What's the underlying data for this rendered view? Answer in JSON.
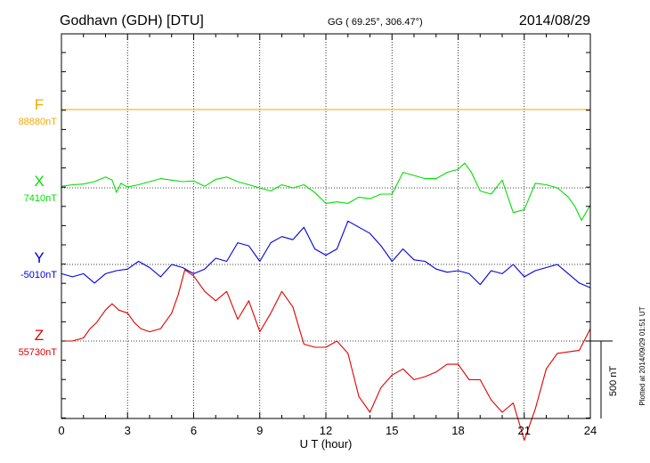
{
  "header": {
    "station": "Godhavn (GDH)  [DTU]",
    "coords": "GG ( 69.25°, 306.47°)",
    "date": "2014/08/29"
  },
  "footer": {
    "plotted": "Plotted at 2014/09/29 01:51  UT"
  },
  "scale": {
    "label": "500 nT",
    "value_nT": 500
  },
  "colors": {
    "F": "#f5a800",
    "X": "#00e000",
    "Y": "#0000e0",
    "Z": "#e00000"
  },
  "chart_data": {
    "type": "line",
    "xlabel": "U T (hour)",
    "xlim": [
      0,
      24
    ],
    "x_ticks": [
      "0",
      "3",
      "6",
      "9",
      "12",
      "15",
      "18",
      "21",
      "24"
    ],
    "series": [
      {
        "name": "F",
        "baseline_label": "88880nT",
        "baseline_nT": 88880,
        "x": [
          0,
          24
        ],
        "values": [
          0,
          0
        ]
      },
      {
        "name": "X",
        "baseline_label": "7410nT",
        "baseline_nT": 7410,
        "x": [
          0,
          0.5,
          1,
          1.5,
          2,
          2.3,
          2.5,
          2.7,
          3,
          3.5,
          4,
          4.5,
          5,
          5.5,
          6,
          6.5,
          7,
          7.5,
          8,
          8.5,
          9,
          9.5,
          10,
          10.5,
          11,
          11.5,
          12,
          12.5,
          13,
          13.5,
          14,
          14.5,
          15,
          15.5,
          16,
          16.5,
          17,
          17.5,
          18,
          18.3,
          18.6,
          19,
          19.5,
          20,
          20.5,
          21,
          21.5,
          22,
          22.5,
          23,
          23.3,
          23.6,
          24
        ],
        "values": [
          10,
          20,
          25,
          40,
          70,
          50,
          -30,
          30,
          5,
          20,
          40,
          60,
          50,
          40,
          45,
          10,
          55,
          70,
          40,
          20,
          0,
          -20,
          20,
          0,
          20,
          -30,
          -100,
          -90,
          -100,
          -60,
          -70,
          -40,
          -40,
          100,
          80,
          60,
          60,
          100,
          120,
          160,
          100,
          -20,
          -40,
          50,
          -160,
          -140,
          30,
          20,
          0,
          -60,
          -120,
          -210,
          -110
        ]
      },
      {
        "name": "Y",
        "baseline_label": "-5010nT",
        "baseline_nT": -5010,
        "x": [
          0,
          0.5,
          1,
          1.5,
          2,
          2.5,
          3,
          3.5,
          4,
          4.5,
          5,
          5.5,
          6,
          6.5,
          7,
          7.5,
          8,
          8.5,
          9,
          9.5,
          10,
          10.5,
          11,
          11.5,
          12,
          12.5,
          13,
          13.5,
          14,
          14.5,
          15,
          15.5,
          16,
          16.5,
          17,
          17.5,
          18,
          18.5,
          19,
          19.5,
          20,
          20.5,
          21,
          21.5,
          22,
          22.5,
          23,
          23.5,
          24
        ],
        "values": [
          -60,
          -80,
          -60,
          -120,
          -60,
          -40,
          -30,
          20,
          -20,
          -80,
          0,
          -20,
          -60,
          -30,
          40,
          20,
          140,
          120,
          20,
          140,
          180,
          160,
          240,
          100,
          60,
          100,
          280,
          240,
          200,
          120,
          20,
          100,
          30,
          20,
          -30,
          -50,
          -40,
          -60,
          -130,
          -40,
          -60,
          0,
          -80,
          -40,
          -20,
          0,
          -60,
          -120,
          -150
        ]
      },
      {
        "name": "Z",
        "baseline_label": "55730nT",
        "baseline_nT": 55730,
        "x": [
          0,
          0.5,
          1,
          1.3,
          1.6,
          2,
          2.3,
          2.6,
          3,
          3.3,
          3.6,
          4,
          4.5,
          5,
          5.3,
          5.6,
          6,
          6.5,
          7,
          7.5,
          8,
          8.5,
          9,
          9.5,
          10,
          10.5,
          11,
          11.5,
          12,
          12.5,
          13,
          13.5,
          14,
          14.5,
          15,
          15.5,
          16,
          16.5,
          17,
          17.5,
          18,
          18.5,
          19,
          19.5,
          20,
          20.5,
          21,
          21.5,
          22,
          22.5,
          23,
          23.5,
          24
        ],
        "values": [
          0,
          0,
          20,
          80,
          120,
          200,
          240,
          200,
          180,
          120,
          80,
          60,
          80,
          180,
          300,
          460,
          420,
          320,
          260,
          320,
          140,
          260,
          60,
          180,
          320,
          220,
          -20,
          -40,
          -40,
          0,
          -80,
          -360,
          -460,
          -300,
          -220,
          -180,
          -250,
          -230,
          -200,
          -150,
          -150,
          -250,
          -250,
          -380,
          -460,
          -400,
          -640,
          -440,
          -180,
          -80,
          -70,
          -60,
          80
        ]
      }
    ]
  }
}
